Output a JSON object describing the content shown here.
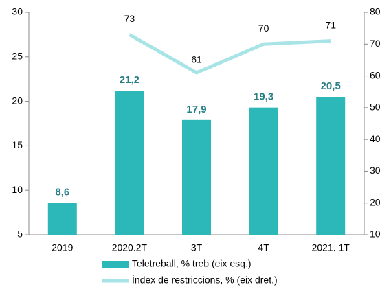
{
  "chart_data": {
    "type": "bar",
    "categories": [
      "2019",
      "2020.2T",
      "3T",
      "4T",
      "2021. 1T"
    ],
    "series": [
      {
        "name": "Teletreball, % treb (eix esq.)",
        "type": "bar",
        "color": "#2cb8b8",
        "values": [
          8.6,
          21.2,
          17.9,
          19.3,
          20.5
        ],
        "value_labels": [
          "8,6",
          "21,2",
          "17,9",
          "19,3",
          "20,5"
        ]
      },
      {
        "name": "Índex de restriccions, % (eix  dret.)",
        "type": "line",
        "axis": "y2",
        "color": "#a8e4e6",
        "values": [
          null,
          73,
          61,
          70,
          71
        ]
      }
    ],
    "ylim": [
      5,
      30
    ],
    "yticks": [
      5,
      10,
      15,
      20,
      25,
      30
    ],
    "y2lim": [
      10,
      80
    ],
    "y2ticks": [
      10,
      20,
      30,
      40,
      50,
      60,
      70,
      80
    ],
    "legend": "bottom"
  }
}
